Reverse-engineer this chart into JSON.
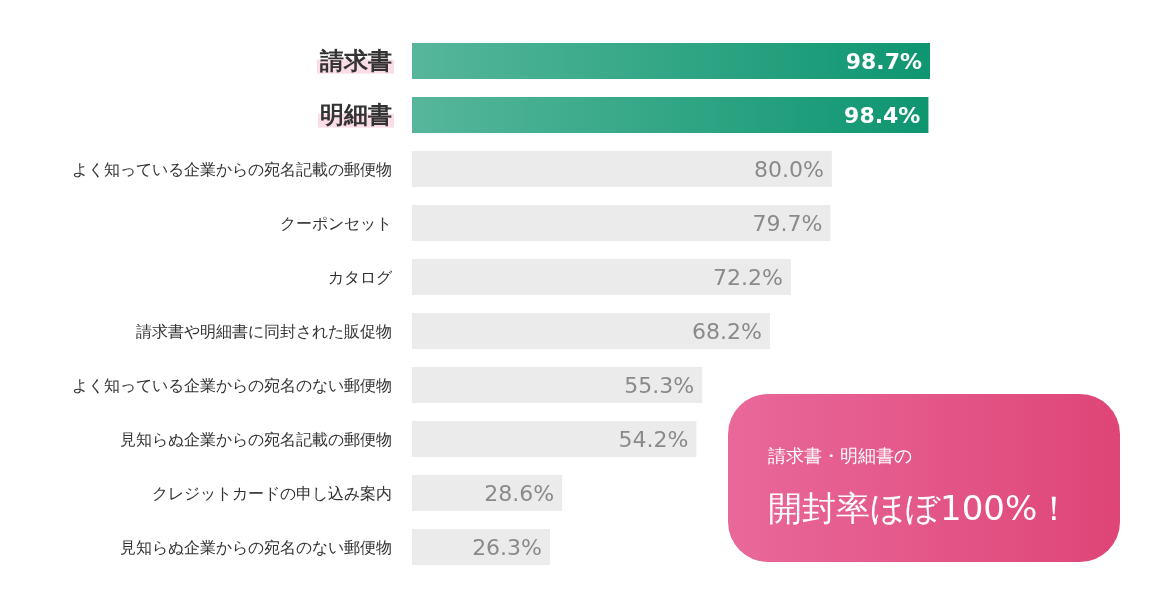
{
  "chart_data": {
    "type": "bar",
    "orientation": "horizontal",
    "categories": [
      "請求書",
      "明細書",
      "よく知っている企業からの宛名記載の郵便物",
      "クーポンセット",
      "カタログ",
      "請求書や明細書に同封された販促物",
      "よく知っている企業からの宛名のない郵便物",
      "見知らぬ企業からの宛名記載の郵便物",
      "クレジットカードの申し込み案内",
      "見知らぬ企業からの宛名のない郵便物"
    ],
    "values": [
      98.7,
      98.4,
      80.0,
      79.7,
      72.2,
      68.2,
      55.3,
      54.2,
      28.6,
      26.3
    ],
    "value_labels": [
      "98.7%",
      "98.4%",
      "80.0%",
      "79.7%",
      "72.2%",
      "68.2%",
      "55.3%",
      "54.2%",
      "28.6%",
      "26.3%"
    ],
    "colors": [
      "#0e9670",
      "#0e9670",
      "#ebebeb",
      "#ebebeb",
      "#ebebeb",
      "#ebebeb",
      "#ebebeb",
      "#ebebeb",
      "#ebebeb",
      "#ebebeb"
    ],
    "annotations": [
      "請求書・明細書の",
      "開封率ほぼ100%！"
    ]
  }
}
